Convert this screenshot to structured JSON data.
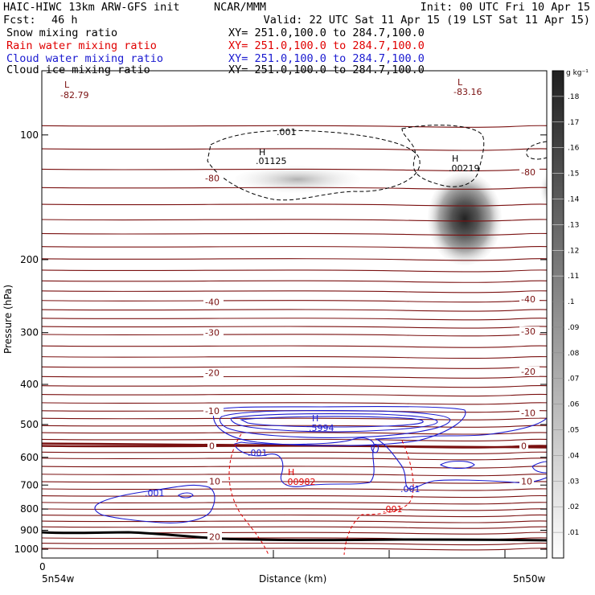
{
  "header": {
    "title_left": "HAIC-HIWC 13km ARW-GFS init",
    "org": "NCAR/MMM",
    "init": "Init: 00 UTC Fri 10 Apr 15",
    "fcst_label": "Fcst:",
    "fcst_value": "46 h",
    "valid": "Valid: 22 UTC Sat 11 Apr 15 (19 LST Sat 11 Apr 15)"
  },
  "fields": [
    {
      "name": "Snow mixing ratio",
      "xy": "XY= 251.0,100.0 to 284.7,100.0",
      "color": "#000000"
    },
    {
      "name": "Rain water mixing ratio",
      "xy": "XY= 251.0,100.0 to 284.7,100.0",
      "color": "#e00000"
    },
    {
      "name": "Cloud water mixing ratio",
      "xy": "XY= 251.0,100.0 to 284.7,100.0",
      "color": "#1a1ad0"
    },
    {
      "name": "Cloud ice mixing ratio",
      "xy": "XY= 251.0,100.0 to 284.7,100.0",
      "color": "#000000"
    }
  ],
  "chart_data": {
    "type": "heatmap",
    "ylabel": "Pressure (hPa)",
    "xlabel": "Distance (km)",
    "x_origin_label": "0",
    "x_left_label": "5n54w",
    "x_right_label": "5n50w",
    "y_ticks": [
      100,
      200,
      300,
      400,
      500,
      600,
      700,
      800,
      900,
      1000
    ],
    "y_axis": "log-pressure, decreasing upward",
    "colorbar": {
      "unit": "g kg⁻¹",
      "ticks": [
        ".01",
        ".02",
        ".03",
        ".04",
        ".05",
        ".06",
        ".07",
        ".08",
        ".09",
        ".1",
        ".11",
        ".12",
        ".13",
        ".14",
        ".15",
        ".16",
        ".17",
        ".18"
      ]
    },
    "temperature_labels": [
      {
        "text": "-80",
        "p": 127,
        "side": "left"
      },
      {
        "text": "-80",
        "p": 123,
        "side": "right"
      },
      {
        "text": "-40",
        "p": 253,
        "side": "left"
      },
      {
        "text": "-40",
        "p": 249,
        "side": "right"
      },
      {
        "text": "-30",
        "p": 300,
        "side": "left"
      },
      {
        "text": "-30",
        "p": 298,
        "side": "right"
      },
      {
        "text": "-20",
        "p": 375,
        "side": "left"
      },
      {
        "text": "-20",
        "p": 372,
        "side": "right"
      },
      {
        "text": "-10",
        "p": 464,
        "side": "left"
      },
      {
        "text": "-10",
        "p": 469,
        "side": "right"
      },
      {
        "text": "0",
        "p": 563,
        "side": "left"
      },
      {
        "text": "0",
        "p": 563,
        "side": "right"
      },
      {
        "text": "10",
        "p": 686,
        "side": "left"
      },
      {
        "text": "10",
        "p": 685,
        "side": "right"
      },
      {
        "text": "20",
        "p": 932,
        "side": "left"
      }
    ],
    "extrema_labels": [
      {
        "text": "L",
        "value": "-82.79",
        "color": "#7a1010"
      },
      {
        "text": "L",
        "value": "-83.16",
        "color": "#7a1010"
      },
      {
        "text": "H",
        "value": ".01125",
        "color": "#000000"
      },
      {
        "text": "H",
        "value": ".00219",
        "color": "#000000"
      },
      {
        "text": "H",
        "value": ".5994",
        "color": "#1a1ad0"
      },
      {
        "text": "H",
        "value": ".00982",
        "color": "#e00000"
      }
    ],
    "contour_labels": [
      {
        "text": ".001",
        "color": "#000000"
      },
      {
        "text": ".001",
        "color": "#1a1ad0"
      },
      {
        "text": ".001",
        "color": "#1a1ad0"
      },
      {
        "text": ".001",
        "color": "#1a1ad0"
      },
      {
        "text": ".001",
        "color": "#e00000"
      }
    ]
  }
}
